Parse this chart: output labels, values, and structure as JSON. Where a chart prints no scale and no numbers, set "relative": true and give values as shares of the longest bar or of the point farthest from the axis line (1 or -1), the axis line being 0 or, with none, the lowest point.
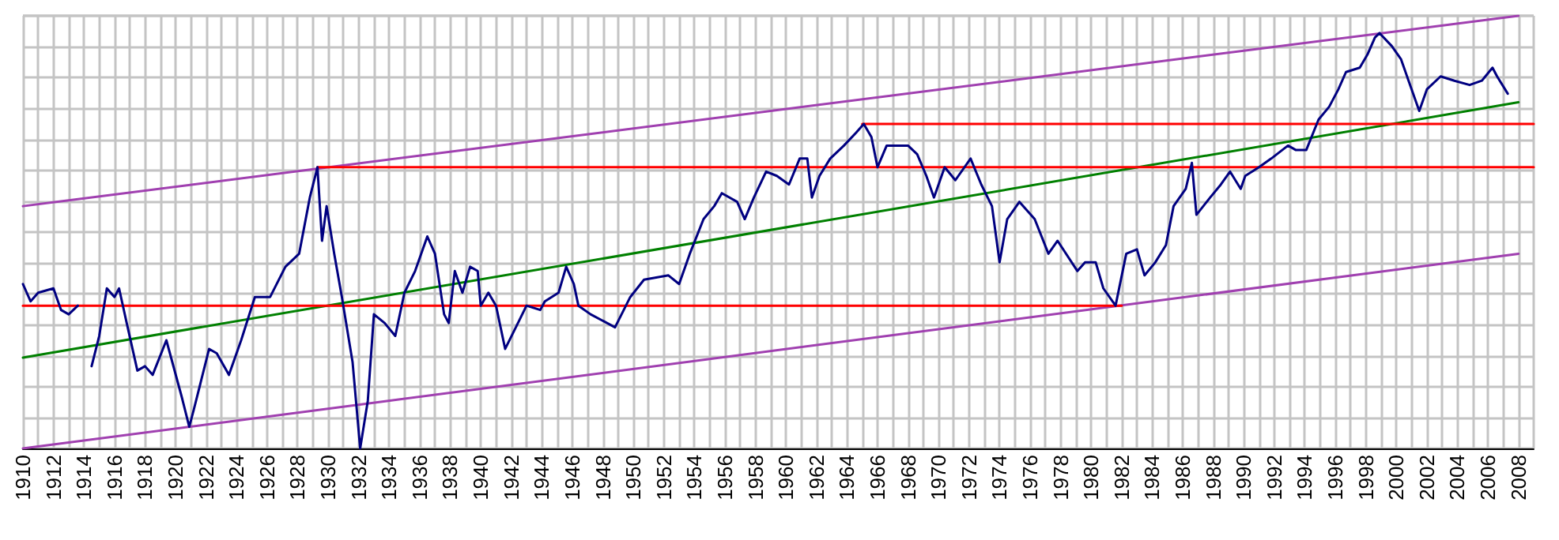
{
  "chart_data": {
    "type": "line",
    "relative": true,
    "grid": true,
    "xlim": [
      1910,
      2009
    ],
    "xticks": [
      1910,
      1912,
      1914,
      1916,
      1918,
      1920,
      1922,
      1924,
      1926,
      1928,
      1930,
      1932,
      1934,
      1936,
      1938,
      1940,
      1942,
      1944,
      1946,
      1948,
      1950,
      1952,
      1954,
      1956,
      1958,
      1960,
      1962,
      1964,
      1966,
      1968,
      1970,
      1972,
      1974,
      1976,
      1978,
      1980,
      1982,
      1984,
      1986,
      1988,
      1990,
      1992,
      1994,
      1996,
      1998,
      2000,
      2002,
      2004,
      2006,
      2008
    ],
    "series": [
      {
        "color": "#a040b0",
        "x": [
          1910,
          2008
        ],
        "values": [
          0.56,
          1.0
        ]
      },
      {
        "color": "#a040b0",
        "x": [
          1910,
          2008
        ],
        "values": [
          0,
          0.45
        ]
      },
      {
        "color": "#008000",
        "x": [
          1910,
          2008
        ],
        "values": [
          0.21,
          0.8
        ]
      },
      {
        "color": "#ff0000",
        "x": [
          1910,
          1982
        ],
        "values": [
          0.33,
          0.33
        ]
      },
      {
        "color": "#ff0000",
        "x": [
          1929.3,
          2009
        ],
        "values": [
          0.65,
          0.65
        ]
      },
      {
        "color": "#ff0000",
        "x": [
          1965,
          2009
        ],
        "values": [
          0.75,
          0.75
        ]
      },
      {
        "color": "#000080",
        "x": [
          1910,
          1910.5,
          1911,
          1912,
          1912.5,
          1913,
          1913.6,
          1914,
          1914.5,
          1915,
          1915.5,
          1916,
          1916.3,
          1916.8,
          1917.5,
          1918,
          1918.5,
          1919.4,
          1920.4,
          1920.9,
          1921.2,
          1922.2,
          1922.7,
          1923.5,
          1924.3,
          1925.2,
          1926.2,
          1927.2,
          1928.1,
          1928.8,
          1929.3,
          1929.6,
          1929.9,
          1930.4,
          1930.9,
          1931.6,
          1932.1,
          1932.6,
          1933,
          1933.7,
          1934.4,
          1935,
          1935.7,
          1936.5,
          1937,
          1937.6,
          1937.9,
          1938.3,
          1938.8,
          1939.3,
          1939.8,
          1940,
          1940.5,
          1941,
          1941.6,
          1942.3,
          1943,
          1943.9,
          1944.2,
          1945.1,
          1945.6,
          1946.1,
          1946.4,
          1947.2,
          1948.8,
          1949.8,
          1950.7,
          1952.3,
          1953,
          1953.7,
          1954.6,
          1955.3,
          1955.8,
          1956.8,
          1957.3,
          1957.9,
          1958.7,
          1959.4,
          1960.2,
          1960.9,
          1961.4,
          1961.7,
          1962.2,
          1962.9,
          1963.8,
          1964.6,
          1965.1,
          1965.6,
          1966,
          1966.6,
          1968,
          1968.6,
          1969.2,
          1969.7,
          1970.4,
          1971.1,
          1972.1,
          1972.8,
          1973.5,
          1974,
          1974.5,
          1975.3,
          1976.3,
          1977.2,
          1977.8,
          1979.1,
          1979.6,
          1980.3,
          1980.8,
          1981.6,
          1982.3,
          1983,
          1983.5,
          1984.2,
          1984.9,
          1985.4,
          1986.2,
          1986.6,
          1986.9,
          1987.8,
          1988.5,
          1989.1,
          1989.8,
          1990.1,
          1991,
          1991.8,
          1992.9,
          1993.4,
          1994.1,
          1994.9,
          1995.6,
          1996.2,
          1996.7,
          1997.6,
          1998.1,
          1998.6,
          1998.9,
          1999.7,
          2000.3,
          2000.8,
          2001.5,
          2002,
          2002.9,
          2003.8,
          2004.8,
          2005.6,
          2006.3,
          2006.6,
          2007.3
        ],
        "values": [
          0.38,
          0.34,
          0.36,
          0.37,
          0.32,
          0.31,
          0.33,
          null,
          0.19,
          0.26,
          0.37,
          0.35,
          0.37,
          0.29,
          0.18,
          0.19,
          0.17,
          0.25,
          0.12,
          0.05,
          0.09,
          0.23,
          0.22,
          0.17,
          0.25,
          0.35,
          0.35,
          0.42,
          0.45,
          0.58,
          0.65,
          0.48,
          0.56,
          0.45,
          0.35,
          0.2,
          0,
          0.11,
          0.31,
          0.29,
          0.26,
          0.36,
          0.41,
          0.49,
          0.45,
          0.31,
          0.29,
          0.41,
          0.36,
          0.42,
          0.41,
          0.33,
          0.36,
          0.33,
          0.23,
          0.28,
          0.33,
          0.32,
          0.34,
          0.36,
          0.42,
          0.38,
          0.33,
          0.31,
          0.28,
          0.35,
          0.39,
          0.4,
          0.38,
          0.45,
          0.53,
          0.56,
          0.59,
          0.57,
          0.53,
          0.58,
          0.64,
          0.63,
          0.61,
          0.67,
          0.67,
          0.58,
          0.63,
          0.67,
          0.7,
          0.73,
          0.75,
          0.72,
          0.65,
          0.7,
          0.7,
          0.68,
          0.63,
          0.58,
          0.65,
          0.62,
          0.67,
          0.61,
          0.56,
          0.43,
          0.53,
          0.57,
          0.53,
          0.45,
          0.48,
          0.41,
          0.43,
          0.43,
          0.37,
          0.33,
          0.45,
          0.46,
          0.4,
          0.43,
          0.47,
          0.56,
          0.6,
          0.66,
          0.54,
          0.58,
          0.61,
          0.64,
          0.6,
          0.63,
          0.65,
          0.67,
          0.7,
          0.69,
          0.69,
          0.76,
          0.79,
          0.83,
          0.87,
          0.88,
          0.91,
          0.95,
          0.96,
          0.93,
          0.9,
          0.85,
          0.78,
          0.83,
          0.86,
          0.85,
          0.84,
          0.85,
          0.88,
          0.86,
          0.82
        ]
      }
    ]
  }
}
